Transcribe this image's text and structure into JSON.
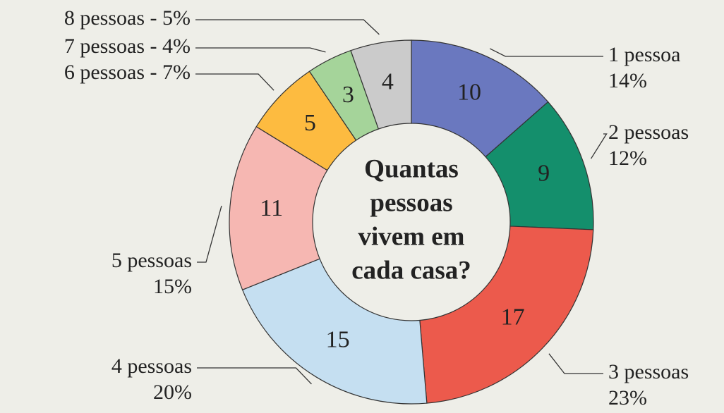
{
  "chart_data": {
    "type": "pie",
    "title": [
      "Quantas",
      "pessoas",
      "vivem em",
      "cada casa?"
    ],
    "categories": [
      [
        "1 pessoa",
        "14%"
      ],
      [
        "2 pessoas",
        "12%"
      ],
      [
        "3 pessoas",
        "23%"
      ],
      [
        "4 pessoas",
        "20%"
      ],
      [
        "5 pessoas",
        "15%"
      ],
      [
        "6 pessoas - 7%"
      ],
      [
        "7 pessoas - 4%"
      ],
      [
        "8 pessoas - 5%"
      ]
    ],
    "values": [
      10,
      9,
      17,
      15,
      11,
      5,
      3,
      4
    ],
    "colors": [
      "#6a78bf",
      "#148f6c",
      "#ec5a4c",
      "#c5dff1",
      "#f6b7b2",
      "#fdbb40",
      "#a5d49a",
      "#cbcbcb"
    ]
  }
}
